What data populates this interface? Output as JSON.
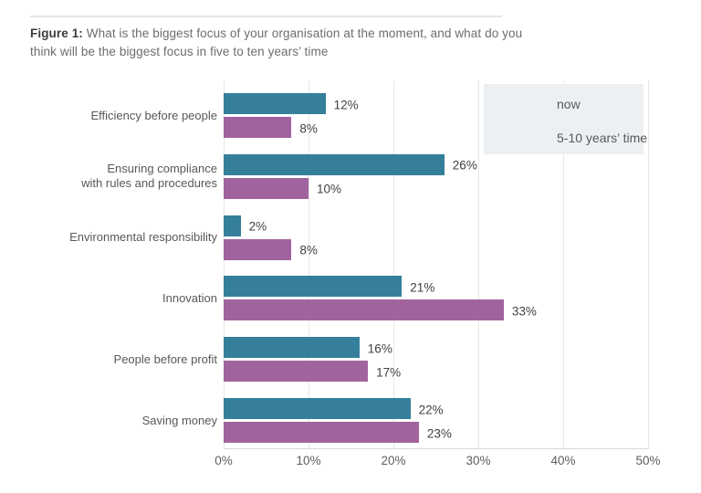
{
  "figure_title": {
    "prefix": "Figure 1:",
    "text": " What is the biggest focus of your organisation at the moment, and what do you\nthink will be the biggest focus in five to ten years’ time"
  },
  "colors": {
    "now": "#357f9b",
    "future": "#a1639d",
    "legend_background": "#edf0f3",
    "gridline": "#e7e7e7",
    "axis_line": "#d9d9d9",
    "label_text": "#585858",
    "value_text": "#414141"
  },
  "chart_data": {
    "type": "bar",
    "orientation": "horizontal",
    "title": "Figure 1: What is the biggest focus of your organisation at the moment, and what do you think will be the biggest focus in five to ten years’ time",
    "categories": [
      "Efficiency before people",
      "Ensuring compliance\nwith rules and procedures",
      "Environmental responsibility",
      "Innovation",
      "People before profit",
      "Saving money"
    ],
    "series": [
      {
        "name": "now",
        "color": "#357f9b",
        "values": [
          12,
          26,
          2,
          21,
          16,
          22
        ]
      },
      {
        "name": "5-10 years’ time",
        "color": "#a1639d",
        "values": [
          8,
          10,
          8,
          33,
          17,
          23
        ]
      }
    ],
    "value_suffix": "%",
    "xlim": [
      0,
      50
    ],
    "x_ticks": [
      "0%",
      "10%",
      "20%",
      "30%",
      "40%",
      "50%"
    ],
    "grid": "vertical",
    "legend_position": "top-right"
  }
}
